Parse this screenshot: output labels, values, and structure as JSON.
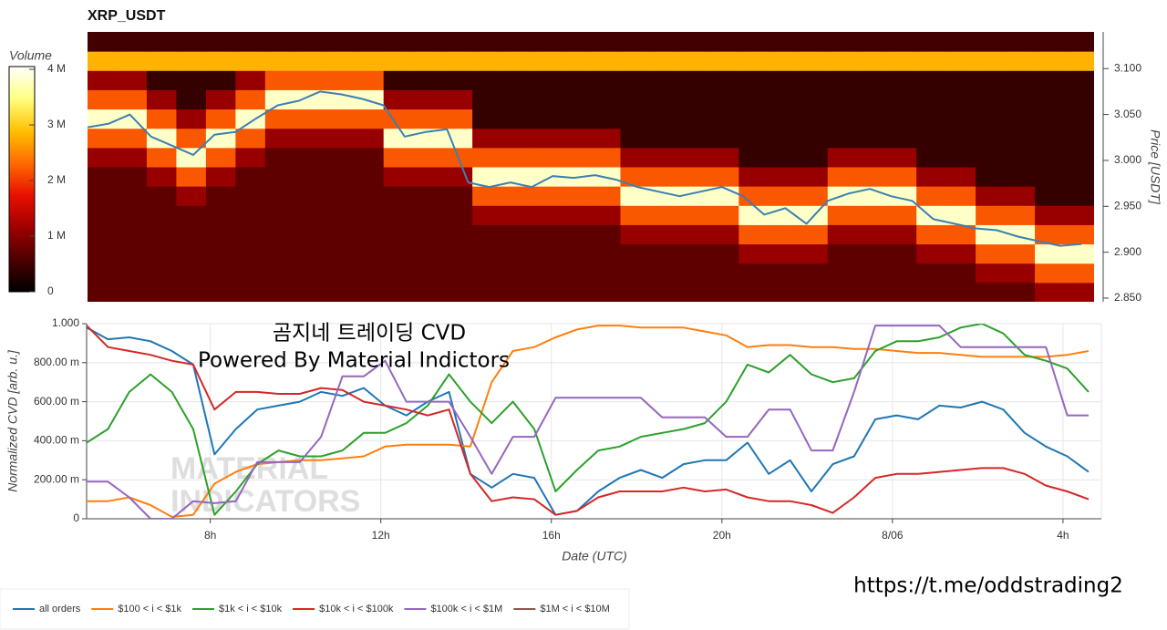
{
  "chart_data": [
    {
      "type": "heatmap",
      "title": "XRP_USDT",
      "ylabel": "Price [USDT]",
      "colorbar_label": "Volume",
      "xlim": [
        5.1,
        28.9
      ],
      "ylim": [
        2.846,
        3.14
      ],
      "yticks": [
        {
          "value": 2.85,
          "label": "2.850"
        },
        {
          "value": 2.9,
          "label": "2.900"
        },
        {
          "value": 2.95,
          "label": "2.950"
        },
        {
          "value": 3.0,
          "label": "3.000"
        },
        {
          "value": 3.05,
          "label": "3.050"
        },
        {
          "value": 3.1,
          "label": "3.100"
        }
      ],
      "clim": [
        0,
        4.05
      ],
      "cticks": [
        0,
        {
          "value": 1,
          "label": "1 M"
        },
        {
          "value": 2,
          "label": "2 M"
        },
        {
          "value": 3,
          "label": "3 M"
        },
        {
          "value": 4,
          "label": "4 M"
        }
      ],
      "colormap": [
        "#000000",
        "#4d0000",
        "#a00000",
        "#e81000",
        "#ff6a00",
        "#ffc000",
        "#ffff80",
        "#ffffff"
      ],
      "xbins": [
        5.1,
        5.8,
        6.5,
        7.2,
        7.9,
        8.6,
        9.3,
        10,
        10.7,
        11.4,
        12.1,
        12.8,
        13.5,
        14.2,
        14.9,
        15.6,
        16.3,
        17,
        17.7,
        18.4,
        19.1,
        19.8,
        20.5,
        21.2,
        21.9,
        22.6,
        23.3,
        24,
        24.7,
        25.4,
        26.1,
        26.8,
        27.5,
        28.2,
        28.9
      ],
      "ybins": [
        2.846,
        2.867,
        2.888,
        2.909,
        2.93,
        2.951,
        2.972,
        2.993,
        3.014,
        3.035,
        3.056,
        3.077,
        3.098,
        3.119,
        3.14
      ],
      "z": [
        [
          0.7,
          0.7,
          0.7,
          0.7,
          0.7,
          0.7,
          0.7,
          0.7,
          0.7,
          0.7,
          0.7,
          0.7,
          0.7,
          0.7,
          0.7,
          0.7,
          0.7,
          0.7,
          0.7,
          0.7,
          0.7,
          0.7,
          0.7,
          0.7,
          0.7,
          0.7,
          0.7,
          0.7,
          0.7,
          0.7,
          0.7,
          0.7,
          1.1,
          1.1
        ],
        [
          0.7,
          0.7,
          0.7,
          0.7,
          0.7,
          0.7,
          0.7,
          0.7,
          0.7,
          0.7,
          0.7,
          0.7,
          0.7,
          0.7,
          0.7,
          0.7,
          0.7,
          0.7,
          0.7,
          0.7,
          0.7,
          0.7,
          0.7,
          0.7,
          0.7,
          0.7,
          0.7,
          0.7,
          0.7,
          0.7,
          1.1,
          1.1,
          2.2,
          2.2
        ],
        [
          0.7,
          0.7,
          0.7,
          0.7,
          0.7,
          0.7,
          0.7,
          0.7,
          0.7,
          0.7,
          0.7,
          0.7,
          0.7,
          0.7,
          0.7,
          0.7,
          0.7,
          0.7,
          0.7,
          0.7,
          0.7,
          0.7,
          1.1,
          1.1,
          1.1,
          0.7,
          0.7,
          0.7,
          1.1,
          1.1,
          2.2,
          2.2,
          3.8,
          3.8
        ],
        [
          0.7,
          0.7,
          0.7,
          0.7,
          0.7,
          0.7,
          0.7,
          0.7,
          0.7,
          0.7,
          0.7,
          0.7,
          0.7,
          0.7,
          0.7,
          0.7,
          0.7,
          0.7,
          1.1,
          1.1,
          1.1,
          1.1,
          2.2,
          2.2,
          2.2,
          1.1,
          1.1,
          1.1,
          2.2,
          2.2,
          3.8,
          3.8,
          2.2,
          2.2
        ],
        [
          0.7,
          0.7,
          0.7,
          0.7,
          0.7,
          0.7,
          0.7,
          0.7,
          0.7,
          0.7,
          0.7,
          0.7,
          0.7,
          1.1,
          1.1,
          1.1,
          1.1,
          1.1,
          2.2,
          2.2,
          2.2,
          2.2,
          3.8,
          3.8,
          3.8,
          2.2,
          2.2,
          2.2,
          3.8,
          3.8,
          2.2,
          2.2,
          1.1,
          1.1
        ],
        [
          0.7,
          0.7,
          0.7,
          1.1,
          0.7,
          0.7,
          0.7,
          0.7,
          0.7,
          0.7,
          0.7,
          0.7,
          0.7,
          2.2,
          2.2,
          2.2,
          2.2,
          2.2,
          3.8,
          3.8,
          3.8,
          3.8,
          2.2,
          2.2,
          2.2,
          3.8,
          3.8,
          3.8,
          2.2,
          2.2,
          1.1,
          1.1,
          0.4,
          0.4
        ],
        [
          0.7,
          0.7,
          1.1,
          2.2,
          1.1,
          0.7,
          0.7,
          0.7,
          0.7,
          0.7,
          1.1,
          1.1,
          1.1,
          3.8,
          3.8,
          3.8,
          3.8,
          3.8,
          2.2,
          2.2,
          2.2,
          2.2,
          1.1,
          1.1,
          1.1,
          2.2,
          2.2,
          2.2,
          1.1,
          1.1,
          0.4,
          0.4,
          0.4,
          0.4
        ],
        [
          1.1,
          1.1,
          2.2,
          3.8,
          2.2,
          1.1,
          0.7,
          0.7,
          0.7,
          0.7,
          2.2,
          2.2,
          2.2,
          2.2,
          2.2,
          2.2,
          2.2,
          2.2,
          1.1,
          1.1,
          1.1,
          1.1,
          0.4,
          0.4,
          0.4,
          1.1,
          1.1,
          1.1,
          0.4,
          0.4,
          0.4,
          0.4,
          0.4,
          0.4
        ],
        [
          2.2,
          2.2,
          3.8,
          2.2,
          3.8,
          2.2,
          1.1,
          1.1,
          1.1,
          1.1,
          3.8,
          3.8,
          3.8,
          1.1,
          1.1,
          1.1,
          1.1,
          1.1,
          0.4,
          0.4,
          0.4,
          0.4,
          0.4,
          0.4,
          0.4,
          0.4,
          0.4,
          0.4,
          0.4,
          0.4,
          0.4,
          0.4,
          0.4,
          0.4
        ],
        [
          3.8,
          3.8,
          2.2,
          1.1,
          2.2,
          3.8,
          2.2,
          2.2,
          2.2,
          2.2,
          2.2,
          2.2,
          2.2,
          0.4,
          0.4,
          0.4,
          0.4,
          0.4,
          0.4,
          0.4,
          0.4,
          0.4,
          0.4,
          0.4,
          0.4,
          0.4,
          0.4,
          0.4,
          0.4,
          0.4,
          0.4,
          0.4,
          0.4,
          0.4
        ],
        [
          2.2,
          2.2,
          1.1,
          0.4,
          1.1,
          2.2,
          3.8,
          3.8,
          3.8,
          3.8,
          1.1,
          1.1,
          1.1,
          0.4,
          0.4,
          0.4,
          0.4,
          0.4,
          0.4,
          0.4,
          0.4,
          0.4,
          0.4,
          0.4,
          0.4,
          0.4,
          0.4,
          0.4,
          0.4,
          0.4,
          0.4,
          0.4,
          0.4,
          0.4
        ],
        [
          1.1,
          1.1,
          0.4,
          0.4,
          0.4,
          1.1,
          2.2,
          2.2,
          2.2,
          2.2,
          0.4,
          0.4,
          0.4,
          0.4,
          0.4,
          0.4,
          0.4,
          0.4,
          0.4,
          0.4,
          0.4,
          0.4,
          0.4,
          0.4,
          0.4,
          0.4,
          0.4,
          0.4,
          0.4,
          0.4,
          0.4,
          0.4,
          0.4,
          0.4
        ],
        [
          2.8,
          2.8,
          2.8,
          2.8,
          2.8,
          2.8,
          2.8,
          2.8,
          2.8,
          2.8,
          2.8,
          2.8,
          2.8,
          2.8,
          2.8,
          2.8,
          2.8,
          2.8,
          2.8,
          2.8,
          2.8,
          2.8,
          2.8,
          2.8,
          2.8,
          2.8,
          2.8,
          2.8,
          2.8,
          2.8,
          2.8,
          2.8,
          2.8,
          2.8
        ],
        [
          0.5,
          0.5,
          0.5,
          0.5,
          0.5,
          0.5,
          0.5,
          0.5,
          0.5,
          0.5,
          0.5,
          0.5,
          0.5,
          0.5,
          0.5,
          0.5,
          0.5,
          0.5,
          0.5,
          0.5,
          0.5,
          0.5,
          0.5,
          0.5,
          0.5,
          0.5,
          0.5,
          0.5,
          0.5,
          0.5,
          0.5,
          0.5,
          0.5,
          0.5
        ]
      ],
      "x": [
        5.1,
        5.6,
        6.1,
        6.6,
        7.1,
        7.6,
        8.1,
        8.6,
        9.1,
        9.6,
        10.1,
        10.6,
        11.1,
        11.6,
        12.1,
        12.6,
        13.1,
        13.6,
        14.1,
        14.6,
        15.1,
        15.6,
        16.1,
        16.6,
        17.1,
        17.6,
        18.1,
        18.6,
        19.1,
        19.6,
        20.1,
        20.6,
        21.1,
        21.6,
        22.1,
        22.6,
        23.1,
        23.6,
        24.1,
        24.6,
        25.1,
        25.6,
        26.1,
        26.6,
        27.1,
        27.6,
        28.1,
        28.6
      ],
      "line": {
        "color": "#3b7fb3",
        "values": [
          3.036,
          3.04,
          3.05,
          3.026,
          3.016,
          3.006,
          3.028,
          3.031,
          3.046,
          3.06,
          3.065,
          3.075,
          3.072,
          3.067,
          3.06,
          3.026,
          3.031,
          3.034,
          2.976,
          2.971,
          2.976,
          2.971,
          2.983,
          2.981,
          2.984,
          2.979,
          2.971,
          2.966,
          2.961,
          2.966,
          2.971,
          2.961,
          2.941,
          2.948,
          2.931,
          2.956,
          2.964,
          2.969,
          2.961,
          2.956,
          2.936,
          2.931,
          2.926,
          2.924,
          2.917,
          2.912,
          2.907,
          2.909
        ]
      }
    },
    {
      "type": "line",
      "xlabel": "Date (UTC)",
      "ylabel": "Normalized CVD [arb. u.]",
      "annotations": [
        "곰지네 트레이딩 CVD",
        "Powered By Material Indictors"
      ],
      "watermark": [
        "MATERIAL",
        "INDICATORS"
      ],
      "xlim": [
        5.1,
        28.9
      ],
      "ylim": [
        0,
        1.0
      ],
      "grid": true,
      "legend": "bottom-left",
      "xticks": [
        {
          "value": 8,
          "label": "8h"
        },
        {
          "value": 12,
          "label": "12h"
        },
        {
          "value": 16,
          "label": "16h"
        },
        {
          "value": 20,
          "label": "20h"
        },
        {
          "value": 24,
          "label": "8/06"
        },
        {
          "value": 28,
          "label": "4h"
        }
      ],
      "yticks": [
        0,
        {
          "value": 0.2,
          "label": "200.00 m"
        },
        {
          "value": 0.4,
          "label": "400.00 m"
        },
        {
          "value": 0.6,
          "label": "600.00 m"
        },
        {
          "value": 0.8,
          "label": "800.00 m"
        },
        {
          "value": 1.0,
          "label": "1.000"
        }
      ],
      "x": [
        5.1,
        5.6,
        6.1,
        6.6,
        7.1,
        7.6,
        8.1,
        8.6,
        9.1,
        9.6,
        10.1,
        10.6,
        11.1,
        11.6,
        12.1,
        12.6,
        13.1,
        13.6,
        14.1,
        14.6,
        15.1,
        15.6,
        16.1,
        16.6,
        17.1,
        17.6,
        18.1,
        18.6,
        19.1,
        19.6,
        20.1,
        20.6,
        21.1,
        21.6,
        22.1,
        22.6,
        23.1,
        23.6,
        24.1,
        24.6,
        25.1,
        25.6,
        26.1,
        26.6,
        27.1,
        27.6,
        28.1,
        28.6
      ],
      "series": [
        {
          "name": "all orders",
          "color": "#1f77b4",
          "values": [
            0.98,
            0.92,
            0.93,
            0.91,
            0.86,
            0.79,
            0.33,
            0.46,
            0.56,
            0.58,
            0.6,
            0.65,
            0.63,
            0.67,
            0.58,
            0.53,
            0.6,
            0.65,
            0.23,
            0.16,
            0.23,
            0.21,
            0.02,
            0.04,
            0.14,
            0.21,
            0.25,
            0.21,
            0.28,
            0.3,
            0.3,
            0.39,
            0.23,
            0.3,
            0.14,
            0.28,
            0.32,
            0.51,
            0.53,
            0.51,
            0.58,
            0.57,
            0.6,
            0.56,
            0.44,
            0.37,
            0.32,
            0.24
          ]
        },
        {
          "name": "$100 < i < $1k",
          "color": "#ff7f0e",
          "values": [
            0.09,
            0.09,
            0.11,
            0.07,
            0.01,
            0.02,
            0.18,
            0.24,
            0.28,
            0.29,
            0.3,
            0.3,
            0.31,
            0.32,
            0.37,
            0.38,
            0.38,
            0.38,
            0.37,
            0.7,
            0.86,
            0.88,
            0.93,
            0.97,
            0.99,
            0.99,
            0.98,
            0.98,
            0.98,
            0.96,
            0.94,
            0.88,
            0.89,
            0.89,
            0.88,
            0.88,
            0.87,
            0.87,
            0.86,
            0.85,
            0.85,
            0.84,
            0.83,
            0.83,
            0.83,
            0.83,
            0.84,
            0.86
          ]
        },
        {
          "name": "$1k < i < $10k",
          "color": "#2ca02c",
          "values": [
            0.39,
            0.46,
            0.65,
            0.74,
            0.65,
            0.46,
            0.02,
            0.14,
            0.28,
            0.35,
            0.32,
            0.32,
            0.35,
            0.44,
            0.44,
            0.49,
            0.58,
            0.74,
            0.6,
            0.49,
            0.6,
            0.46,
            0.14,
            0.25,
            0.35,
            0.37,
            0.42,
            0.44,
            0.46,
            0.49,
            0.6,
            0.79,
            0.75,
            0.84,
            0.74,
            0.7,
            0.72,
            0.86,
            0.91,
            0.91,
            0.93,
            0.98,
            1.0,
            0.95,
            0.84,
            0.81,
            0.77,
            0.65
          ]
        },
        {
          "name": "$10k < i < $100k",
          "color": "#d62728",
          "values": [
            0.99,
            0.88,
            0.86,
            0.84,
            0.81,
            0.79,
            0.56,
            0.65,
            0.65,
            0.64,
            0.64,
            0.67,
            0.66,
            0.6,
            0.58,
            0.56,
            0.53,
            0.56,
            0.23,
            0.09,
            0.11,
            0.1,
            0.02,
            0.04,
            0.11,
            0.14,
            0.14,
            0.14,
            0.16,
            0.14,
            0.15,
            0.11,
            0.09,
            0.09,
            0.07,
            0.03,
            0.11,
            0.21,
            0.23,
            0.23,
            0.24,
            0.25,
            0.26,
            0.26,
            0.23,
            0.17,
            0.14,
            0.1
          ]
        },
        {
          "name": "$100k < i < $1M",
          "color": "#9467bd",
          "values": [
            0.19,
            0.19,
            0.11,
            0,
            0,
            0.09,
            0.08,
            0.09,
            0.29,
            0.29,
            0.29,
            0.42,
            0.73,
            0.73,
            0.81,
            0.6,
            0.6,
            0.6,
            0.42,
            0.23,
            0.42,
            0.42,
            0.62,
            0.62,
            0.62,
            0.62,
            0.62,
            0.52,
            0.52,
            0.52,
            0.42,
            0.42,
            0.56,
            0.56,
            0.35,
            0.35,
            0.65,
            0.99,
            0.99,
            0.99,
            0.99,
            0.88,
            0.88,
            0.88,
            0.88,
            0.88,
            0.53,
            0.53
          ]
        },
        {
          "name": "$1M < i < $10M",
          "color": "#8c564b",
          "values": [
            null,
            null,
            null,
            null,
            null,
            null,
            null,
            null,
            null,
            null,
            null,
            null,
            null,
            null,
            null,
            null,
            null,
            null,
            null,
            null,
            null,
            null,
            null,
            null,
            null,
            null,
            null,
            null,
            null,
            null,
            null,
            null,
            null,
            null,
            null,
            null,
            null,
            null,
            null,
            null,
            null,
            null,
            null,
            null,
            null,
            null,
            null,
            null
          ]
        }
      ]
    }
  ],
  "footer_link": "https://t.me/oddstrading2"
}
